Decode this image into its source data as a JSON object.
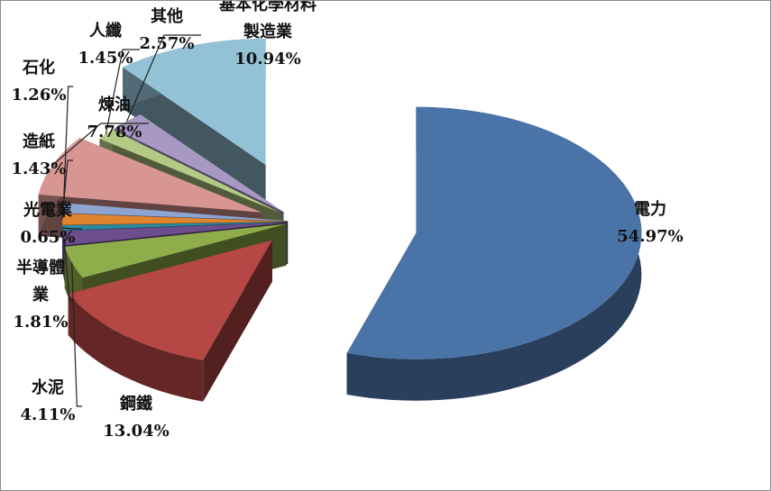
{
  "chart_data": {
    "type": "pie",
    "style": "exploded-3d",
    "slices": [
      {
        "label": "電力",
        "value": 54.97,
        "value_text": "54.97%",
        "color": "#4a73a8"
      },
      {
        "label": "鋼鐵",
        "value": 13.04,
        "value_text": "13.04%",
        "color": "#b54744"
      },
      {
        "label": "水泥",
        "value": 4.11,
        "value_text": "4.11%",
        "color": "#8fad4b"
      },
      {
        "label": "半導體業",
        "label_lines": [
          "半導體",
          "業"
        ],
        "value": 1.81,
        "value_text": "1.81%",
        "color": "#6c4e8f"
      },
      {
        "label": "光電業",
        "value": 0.65,
        "value_text": "0.65%",
        "color": "#2a8a9f"
      },
      {
        "label": "造紙",
        "value": 1.43,
        "value_text": "1.43%",
        "color": "#e0842e"
      },
      {
        "label": "石化",
        "value": 1.26,
        "value_text": "1.26%",
        "color": "#8da4d0"
      },
      {
        "label": "煉油",
        "value": 7.78,
        "value_text": "7.78%",
        "color": "#d89692"
      },
      {
        "label": "人纖",
        "value": 1.45,
        "value_text": "1.45%",
        "color": "#b3ca86"
      },
      {
        "label": "其他",
        "value": 2.57,
        "value_text": "2.57%",
        "color": "#a799c3"
      },
      {
        "label": "基本化學材料製造業",
        "label_lines": [
          "基本化學材料",
          "製造業"
        ],
        "value": 10.94,
        "value_text": "10.94%",
        "color": "#93c1d6"
      }
    ]
  }
}
